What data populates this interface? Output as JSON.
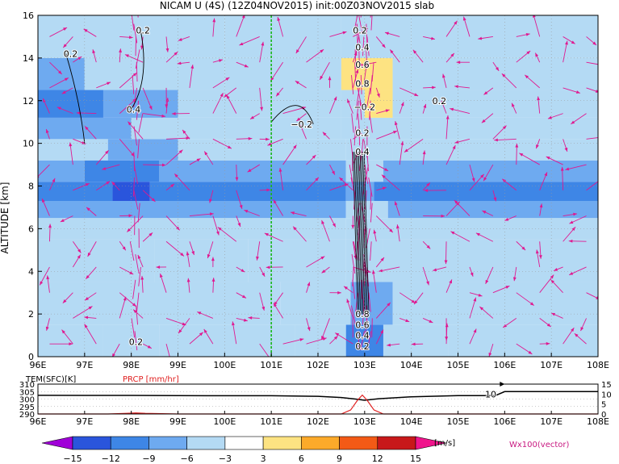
{
  "chart_data": [
    {
      "type": "heatmap",
      "title": "NICAM U (4S) (12Z04NOV2015) init:00Z03NOV2015 slab",
      "ylabel": "ALTITUDE [km]",
      "x_ticks": [
        "96E",
        "97E",
        "98E",
        "99E",
        "100E",
        "101E",
        "102E",
        "103E",
        "104E",
        "105E",
        "106E",
        "107E",
        "108E"
      ],
      "y_ticks": [
        0,
        2,
        4,
        6,
        8,
        10,
        12,
        14,
        16
      ],
      "xlim": [
        96,
        108
      ],
      "ylim": [
        0,
        16
      ],
      "grid": true,
      "reference_line_lon": 101,
      "bands": [
        {
          "z": [
            0,
            1.5
          ],
          "segs": [
            [
              96,
              97.4,
              -4
            ],
            [
              97.4,
              98.6,
              -6
            ],
            [
              98.6,
              101.5,
              -4
            ],
            [
              101.5,
              102.6,
              -6
            ],
            [
              102.6,
              103.4,
              -10
            ],
            [
              103.4,
              104.8,
              -6
            ],
            [
              104.8,
              108,
              -4
            ]
          ]
        },
        {
          "z": [
            1.5,
            3.5
          ],
          "segs": [
            [
              96,
              99,
              -4
            ],
            [
              99,
              101.2,
              -6
            ],
            [
              101.2,
              102.7,
              -4
            ],
            [
              102.7,
              103.6,
              -9
            ],
            [
              103.6,
              108,
              -4
            ]
          ]
        },
        {
          "z": [
            3.5,
            5.5
          ],
          "segs": [
            [
              96,
              98.5,
              -4
            ],
            [
              98.5,
              100.5,
              -6
            ],
            [
              100.5,
              102.6,
              -4
            ],
            [
              102.6,
              103.4,
              -6
            ],
            [
              103.4,
              108,
              -4
            ]
          ]
        },
        {
          "z": [
            5.5,
            6.5
          ],
          "segs": [
            [
              96,
              102.6,
              -6
            ],
            [
              102.6,
              108,
              -4
            ]
          ]
        },
        {
          "z": [
            6.5,
            7.3
          ],
          "segs": [
            [
              96,
              102.6,
              -9
            ],
            [
              102.6,
              103.5,
              -6
            ],
            [
              103.5,
              108,
              -9
            ]
          ]
        },
        {
          "z": [
            7.3,
            8.2
          ],
          "segs": [
            [
              96,
              97.6,
              -12
            ],
            [
              97.6,
              98.4,
              -14
            ],
            [
              98.4,
              102.6,
              -12
            ],
            [
              102.6,
              103.2,
              -9
            ],
            [
              103.2,
              108,
              -12
            ]
          ]
        },
        {
          "z": [
            8.2,
            9.2
          ],
          "segs": [
            [
              96,
              97,
              -9
            ],
            [
              97,
              98.6,
              -12
            ],
            [
              98.6,
              102.6,
              -9
            ],
            [
              102.6,
              103.4,
              -6
            ],
            [
              103.4,
              108,
              -9
            ]
          ]
        },
        {
          "z": [
            9.2,
            10.2
          ],
          "segs": [
            [
              96,
              97.5,
              -6
            ],
            [
              97.5,
              99,
              -9
            ],
            [
              99,
              102.6,
              -6
            ],
            [
              102.6,
              103.6,
              -4
            ],
            [
              103.6,
              108,
              -6
            ]
          ]
        },
        {
          "z": [
            10.2,
            11.2
          ],
          "segs": [
            [
              96,
              98,
              -9
            ],
            [
              98,
              100,
              -6
            ],
            [
              100,
              102.5,
              -4
            ],
            [
              102.5,
              108,
              -4
            ]
          ]
        },
        {
          "z": [
            11.2,
            12.5
          ],
          "segs": [
            [
              96,
              97.4,
              -12
            ],
            [
              97.4,
              99,
              -9
            ],
            [
              99,
              101,
              -4
            ],
            [
              101,
              102.5,
              -4
            ],
            [
              102.5,
              103,
              -4
            ],
            [
              103,
              103.6,
              4
            ],
            [
              103.6,
              108,
              -4
            ]
          ]
        },
        {
          "z": [
            12.5,
            14
          ],
          "segs": [
            [
              96,
              97,
              -9
            ],
            [
              97,
              98.2,
              -6
            ],
            [
              98.2,
              100,
              -4
            ],
            [
              100,
              102.5,
              -4
            ],
            [
              102.5,
              103.6,
              4
            ],
            [
              103.6,
              108,
              -4
            ]
          ]
        },
        {
          "z": [
            14,
            16
          ],
          "segs": [
            [
              96,
              98,
              -6
            ],
            [
              98,
              100,
              -4
            ],
            [
              100,
              102.5,
              -4
            ],
            [
              102.5,
              104,
              -4
            ],
            [
              104,
              108,
              -4
            ]
          ]
        }
      ],
      "contour_labels": [
        {
          "x": 98.25,
          "y": 15.3,
          "text": "0.2"
        },
        {
          "x": 96.7,
          "y": 14.2,
          "text": "0.2"
        },
        {
          "x": 98.05,
          "y": 11.6,
          "text": "0.4"
        },
        {
          "x": 101.65,
          "y": 10.9,
          "text": "−0.2"
        },
        {
          "x": 103.0,
          "y": 11.7,
          "text": "−0.2"
        },
        {
          "x": 104.6,
          "y": 12.0,
          "text": "0.2"
        },
        {
          "x": 102.9,
          "y": 15.3,
          "text": "0.2"
        },
        {
          "x": 102.95,
          "y": 14.5,
          "text": "0.4"
        },
        {
          "x": 102.95,
          "y": 13.7,
          "text": "0.6"
        },
        {
          "x": 102.95,
          "y": 12.8,
          "text": "0.8"
        },
        {
          "x": 102.95,
          "y": 10.5,
          "text": "0.2"
        },
        {
          "x": 102.95,
          "y": 9.6,
          "text": "0.4"
        },
        {
          "x": 98.1,
          "y": 0.7,
          "text": "0.2"
        },
        {
          "x": 102.95,
          "y": 2.0,
          "text": "0.8"
        },
        {
          "x": 102.95,
          "y": 1.5,
          "text": "0.6"
        },
        {
          "x": 102.95,
          "y": 1.0,
          "text": "0.4"
        },
        {
          "x": 102.95,
          "y": 0.5,
          "text": "0.2"
        }
      ]
    },
    {
      "type": "line",
      "labels": {
        "tem": "TEM(SFC)[K]",
        "prcp": "PRCP [mm/hr]"
      },
      "x_ticks": [
        "96E",
        "97E",
        "98E",
        "99E",
        "100E",
        "101E",
        "102E",
        "103E",
        "104E",
        "105E",
        "106E",
        "107E",
        "108E"
      ],
      "y_left_ticks": [
        290,
        295,
        300,
        305,
        310
      ],
      "y_right_ticks": [
        0,
        5,
        10,
        15
      ],
      "left_ylim": [
        290,
        310
      ],
      "right_ylim": [
        0,
        15
      ],
      "tem_series": {
        "name": "TEM(SFC)[K]",
        "color": "#000000",
        "x": [
          96,
          97,
          98,
          99,
          100,
          101,
          102,
          102.5,
          102.8,
          103,
          103.3,
          104,
          105,
          105.8,
          106,
          107,
          108
        ],
        "y": [
          302.5,
          302.4,
          302.4,
          302.3,
          302.2,
          302.2,
          301.8,
          301.0,
          300.0,
          299.2,
          300.2,
          301.5,
          302.3,
          302.3,
          305.0,
          305.0,
          305.0
        ]
      },
      "prcp_series": {
        "name": "PRCP [mm/hr]",
        "color": "#e02020",
        "x": [
          96,
          97.5,
          97.9,
          98.1,
          98.3,
          99,
          102.5,
          102.7,
          102.85,
          102.95,
          103.05,
          103.2,
          103.4,
          104,
          108
        ],
        "y": [
          0,
          0,
          0.3,
          0.5,
          0.3,
          0,
          0,
          2,
          7,
          9.5,
          7,
          2,
          0,
          0,
          0
        ]
      },
      "annotation": {
        "x": 105.7,
        "y": 10,
        "text": "10"
      },
      "arrow_from_x": 105.5
    },
    {
      "type": "colorbar",
      "boundaries": [
        "−15",
        "−12",
        "−9",
        "−6",
        "−3",
        "3",
        "6",
        "9",
        "12",
        "15"
      ],
      "colors": [
        "#a000d8",
        "#2a55dc",
        "#3e86e6",
        "#6eaaf0",
        "#b4daf4",
        "#ffffff",
        "#fde382",
        "#fcaa2a",
        "#f35a16",
        "#c8181a",
        "#f0148c"
      ],
      "unit": "[m/s]",
      "vector_label": "Wx100(vector)"
    }
  ]
}
